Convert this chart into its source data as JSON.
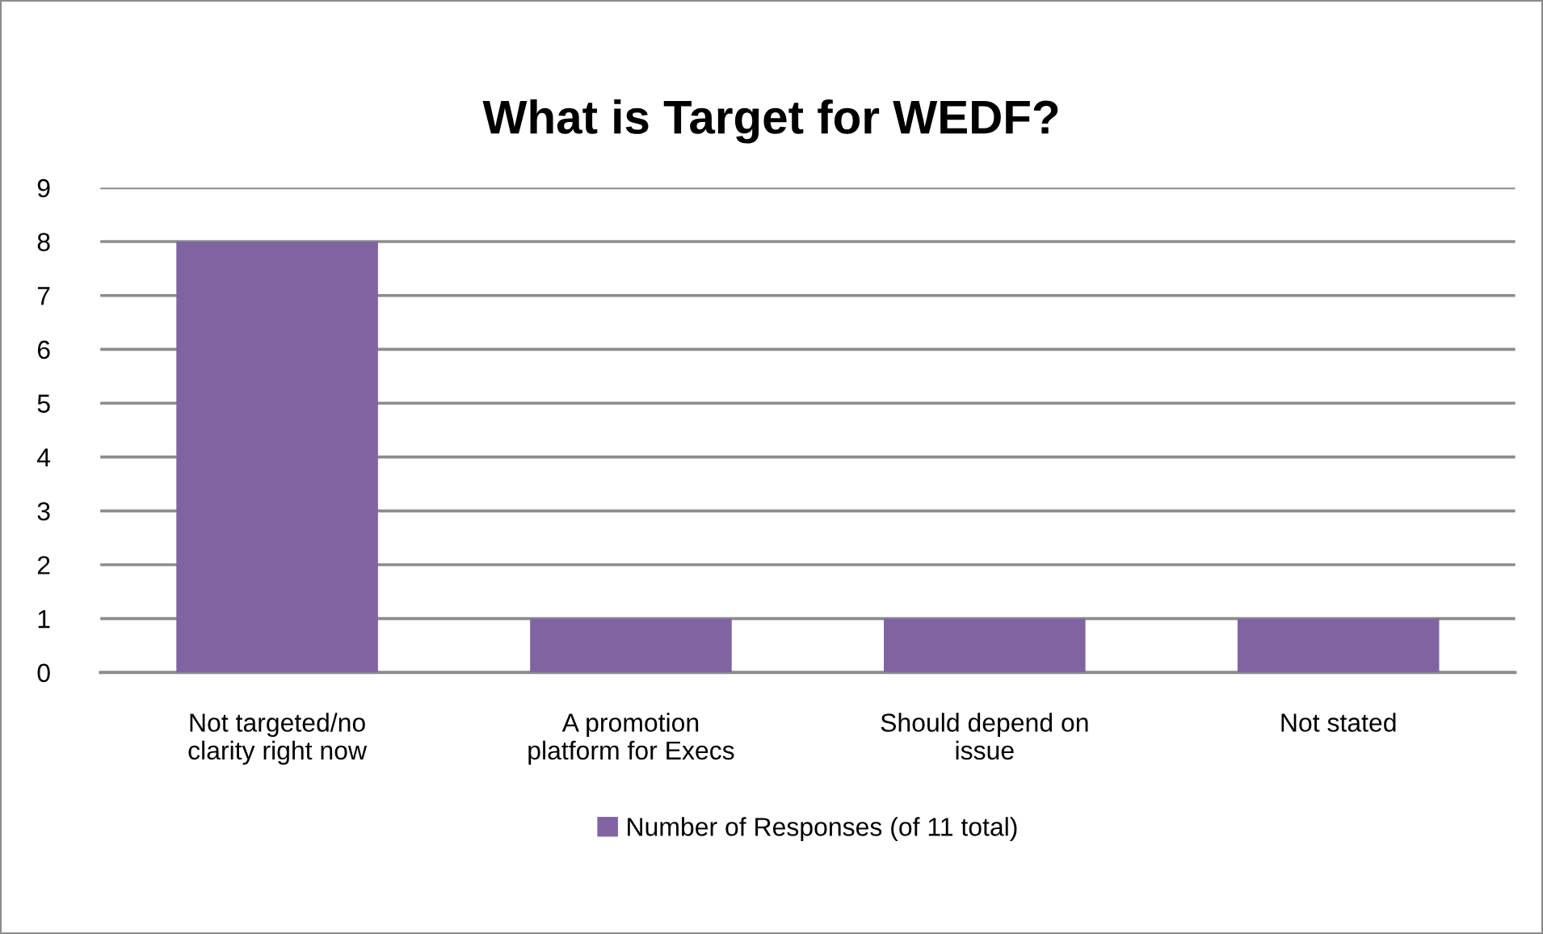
{
  "chart_data": {
    "type": "bar",
    "title": "What is Target for WEDF?",
    "categories": [
      "Not targeted/no\nclarity right now",
      "A promotion\nplatform for Execs",
      "Should depend on\nissue",
      "Not stated"
    ],
    "series": [
      {
        "name": "Number of Responses (of 11 total)",
        "color": "#8064a2",
        "values": [
          8,
          1,
          1,
          1
        ]
      }
    ],
    "ylim": [
      0,
      9
    ],
    "yticks": [
      0,
      1,
      2,
      3,
      4,
      5,
      6,
      7,
      8,
      9
    ],
    "grid": "y",
    "legend": "bottom"
  }
}
